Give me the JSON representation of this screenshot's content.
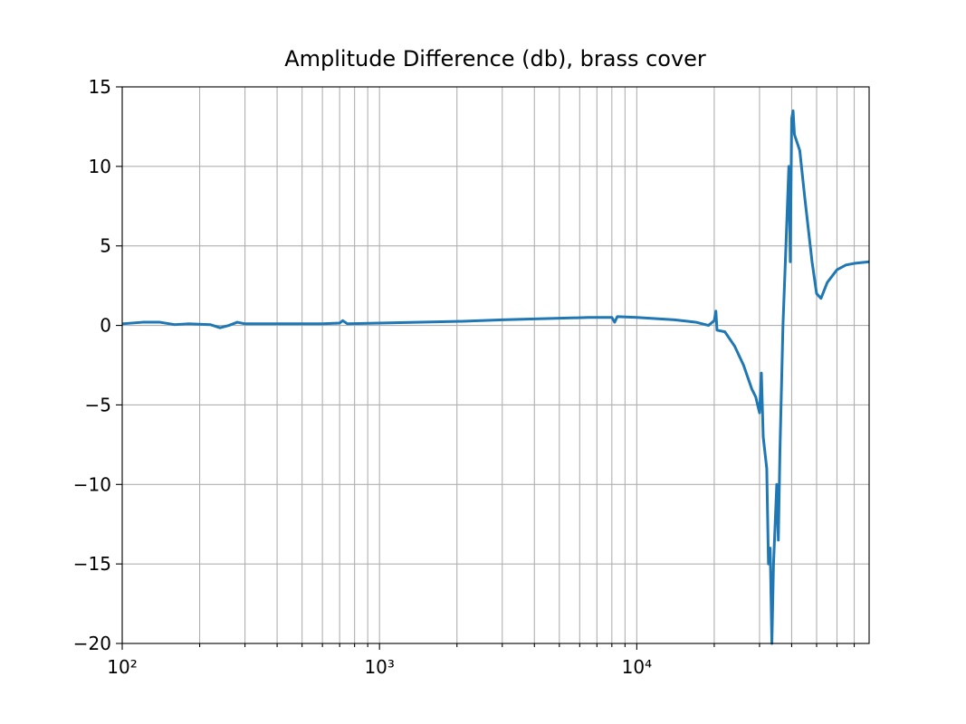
{
  "chart_data": {
    "type": "line",
    "title": "Amplitude Difference (db), brass cover",
    "x": [
      100,
      120,
      140,
      160,
      180,
      220,
      240,
      260,
      280,
      300,
      400,
      600,
      700,
      720,
      750,
      1000,
      2000,
      3000,
      5000,
      6500,
      8000,
      8200,
      8400,
      10000,
      14000,
      17000,
      19000,
      20000,
      20300,
      20500,
      22000,
      24000,
      26000,
      28000,
      29000,
      30000,
      30500,
      31000,
      32000,
      32500,
      33000,
      33500,
      34000,
      35000,
      35500,
      36000,
      37000,
      38000,
      39000,
      39500,
      40000,
      40500,
      41000,
      43000,
      45000,
      48000,
      50000,
      52000,
      55000,
      60000,
      65000,
      70000,
      80000
    ],
    "values": [
      0.1,
      0.2,
      0.2,
      0.05,
      0.1,
      0.05,
      -0.15,
      0.0,
      0.2,
      0.1,
      0.1,
      0.1,
      0.15,
      0.3,
      0.1,
      0.15,
      0.25,
      0.35,
      0.45,
      0.5,
      0.5,
      0.2,
      0.55,
      0.5,
      0.35,
      0.2,
      0.0,
      0.3,
      0.9,
      -0.3,
      -0.4,
      -1.3,
      -2.5,
      -4.0,
      -4.5,
      -5.5,
      -3,
      -7,
      -9,
      -15,
      -14,
      -20,
      -15,
      -10,
      -13.5,
      -8,
      0,
      5,
      10,
      4,
      13,
      13.5,
      12,
      11,
      8,
      4,
      2,
      1.7,
      2.7,
      3.5,
      3.8,
      3.9,
      4.0
    ],
    "color": "#1f77b4",
    "xscale": "log",
    "xlim": [
      100,
      80000
    ],
    "ylim": [
      -20,
      15
    ],
    "xticks": [
      {
        "value": 100,
        "label": "10²"
      },
      {
        "value": 1000,
        "label": "10³"
      },
      {
        "value": 10000,
        "label": "10⁴"
      }
    ],
    "xminorticks": [
      200,
      300,
      400,
      500,
      600,
      700,
      800,
      900,
      2000,
      3000,
      4000,
      5000,
      6000,
      7000,
      8000,
      9000,
      20000,
      30000,
      40000,
      50000,
      60000,
      70000
    ],
    "yticks": [
      {
        "value": -20,
        "label": "−20"
      },
      {
        "value": -15,
        "label": "−15"
      },
      {
        "value": -10,
        "label": "−10"
      },
      {
        "value": -5,
        "label": "−5"
      },
      0,
      5,
      10,
      15
    ],
    "grid": true
  }
}
